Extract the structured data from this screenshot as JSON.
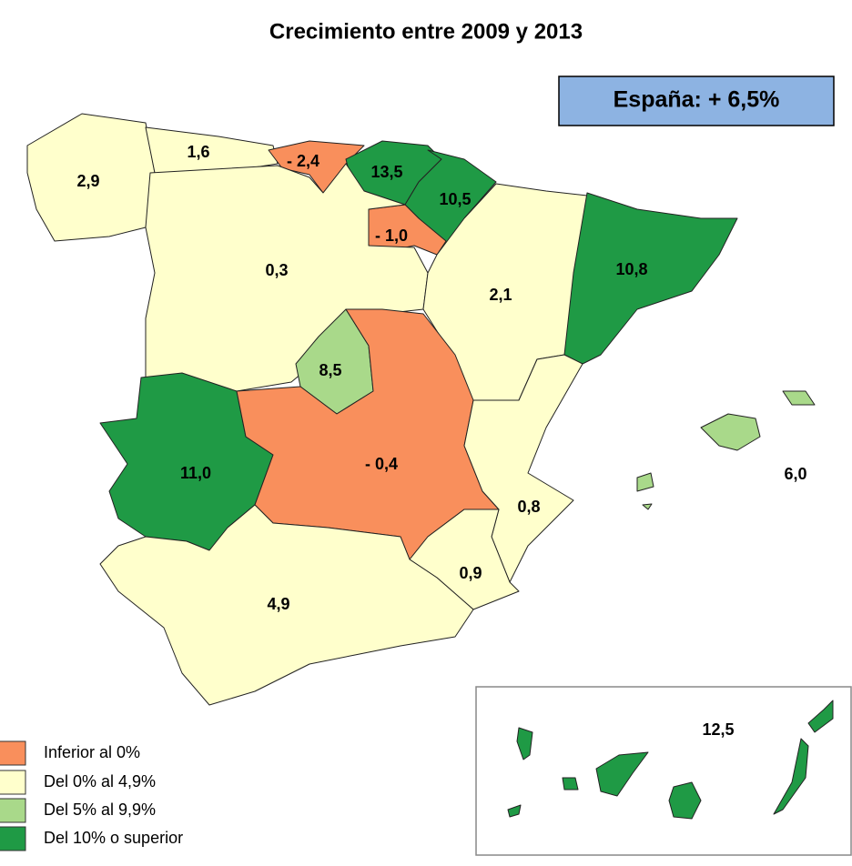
{
  "map": {
    "title": "Crecimiento entre 2009 y 2013",
    "national": "España: + 6,5%",
    "regions": [
      {
        "value": 2.9,
        "label": "2,9",
        "color": "#ffffcc"
      },
      {
        "value": 1.6,
        "label": "1,6",
        "color": "#ffffcc"
      },
      {
        "value": -2.4,
        "label": "- 2,4",
        "color": "#f98f5c"
      },
      {
        "value": 13.5,
        "label": "13,5",
        "color": "#1f9a45"
      },
      {
        "value": 10.5,
        "label": "10,5",
        "color": "#1f9a45"
      },
      {
        "value": -1.0,
        "label": "- 1,0",
        "color": "#f98f5c"
      },
      {
        "value": 0.3,
        "label": "0,3",
        "color": "#ffffcc"
      },
      {
        "value": 2.1,
        "label": "2,1",
        "color": "#ffffcc"
      },
      {
        "value": 10.8,
        "label": "10,8",
        "color": "#1f9a45"
      },
      {
        "value": 8.5,
        "label": "8,5",
        "color": "#a9d98a"
      },
      {
        "value": 11.0,
        "label": "11,0",
        "color": "#1f9a45"
      },
      {
        "value": -0.4,
        "label": "- 0,4",
        "color": "#f98f5c"
      },
      {
        "value": 0.8,
        "label": "0,8",
        "color": "#ffffcc"
      },
      {
        "value": 0.9,
        "label": "0,9",
        "color": "#ffffcc"
      },
      {
        "value": 4.9,
        "label": "4,9",
        "color": "#ffffcc"
      },
      {
        "value": 6.0,
        "label": "6,0",
        "color": "#a9d98a"
      },
      {
        "value": 12.5,
        "label": "12,5",
        "color": "#1f9a45"
      }
    ],
    "legend": [
      {
        "label": "Inferior al 0%",
        "color": "#f98f5c"
      },
      {
        "label": "Del 0% al 4,9%",
        "color": "#ffffcc"
      },
      {
        "label": "Del 5% al 9,9%",
        "color": "#a9d98a"
      },
      {
        "label": "Del 10% o superior",
        "color": "#1f9a45"
      }
    ]
  }
}
